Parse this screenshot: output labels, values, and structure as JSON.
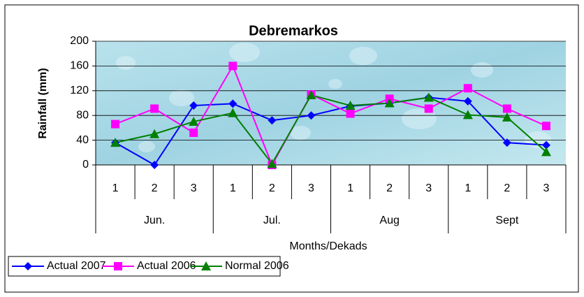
{
  "chart_data": {
    "type": "line",
    "title": "Debremarkos",
    "x_label": "Months/Dekads",
    "y_label": "Rainfall (mm)",
    "categories": [
      "1",
      "2",
      "3",
      "1",
      "2",
      "3",
      "1",
      "2",
      "3",
      "1",
      "2",
      "3"
    ],
    "groups": [
      "Jun.",
      "Jul.",
      "Aug",
      "Sept"
    ],
    "series": [
      {
        "name": "Actual 2007",
        "color": "#0000ff",
        "marker": "diamond",
        "values": [
          36,
          0,
          96,
          99,
          72,
          80,
          95,
          100,
          109,
          103,
          36,
          32
        ]
      },
      {
        "name": "Actual 2006",
        "color": "#ff00ff",
        "marker": "square",
        "values": [
          66,
          91,
          52,
          160,
          0,
          114,
          83,
          107,
          91,
          124,
          91,
          63
        ]
      },
      {
        "name": "Normal 2006",
        "color": "#008000",
        "marker": "triangle",
        "values": [
          36,
          50,
          70,
          84,
          2,
          113,
          96,
          100,
          109,
          81,
          77,
          21
        ]
      }
    ],
    "ylim": [
      0,
      200
    ],
    "yticks": [
      0,
      40,
      80,
      120,
      160,
      200
    ],
    "grid": true,
    "legend": "bottom-left"
  }
}
